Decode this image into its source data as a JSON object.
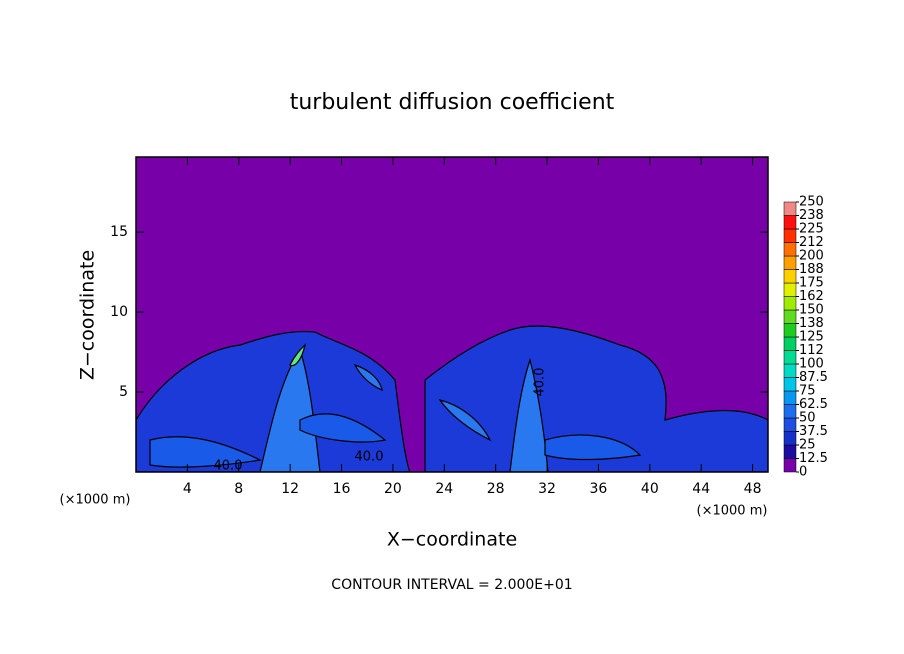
{
  "chart_data": {
    "type": "contour",
    "title": "turbulent diffusion coefficient",
    "x_label": "X−coordinate",
    "y_label": "Z−coordinate",
    "x_unit_left": "(×1000 m)",
    "x_unit_right": "(×1000 m)",
    "footer": "CONTOUR INTERVAL = 2.000E+01",
    "xlim": [
      0,
      49.2
    ],
    "xticks": [
      4,
      8,
      12,
      16,
      20,
      24,
      28,
      32,
      36,
      40,
      44,
      48
    ],
    "ylim": [
      0,
      19.7
    ],
    "yticks": [
      5,
      10,
      15
    ],
    "contour_labels": [
      "40.0",
      "40.0",
      "40.0"
    ],
    "colorbar": {
      "ticks": [
        0,
        12.5,
        25,
        37.5,
        50,
        62.5,
        75,
        87.5,
        100,
        {
          "value": 112.5,
          "label": "112"
        },
        125,
        {
          "value": 137.5,
          "label": "138"
        },
        150,
        {
          "value": 162.5,
          "label": "162"
        },
        175,
        {
          "value": 187.5,
          "label": "188"
        },
        200,
        {
          "value": 212.5,
          "label": "212"
        },
        225,
        {
          "value": 237.5,
          "label": "238"
        },
        250
      ],
      "colors": [
        "#7800a8",
        "#1c0ca0",
        "#1630c8",
        "#1f4ee0",
        "#1c6ef0",
        "#0898f0",
        "#00c4e8",
        "#00dcc4",
        "#00dc94",
        "#00d064",
        "#20cc20",
        "#60dc20",
        "#a0ec00",
        "#e0f000",
        "#ffd000",
        "#ffa000",
        "#ff7000",
        "#ff3000",
        "#ff1010",
        "#f08888"
      ]
    }
  }
}
